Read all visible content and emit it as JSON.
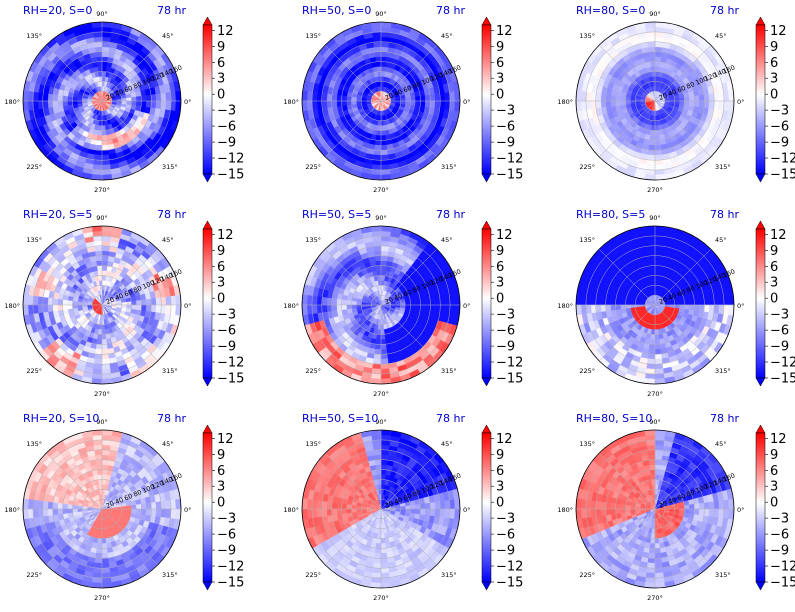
{
  "chart_data": {
    "type": "polar-contour",
    "time_label": "78 hr",
    "angle_labels": [
      "90°",
      "45°",
      "0°",
      "315°",
      "270°",
      "225°",
      "180°",
      "135°"
    ],
    "radial_labels": [
      "20",
      "40",
      "60",
      "80",
      "100",
      "120",
      "140",
      "160"
    ],
    "colorbar_ticks": [
      "12",
      "9",
      "6",
      "3",
      "0",
      "−3",
      "−6",
      "−9",
      "−12",
      "−15"
    ],
    "colormap": [
      "#0000ff",
      "#ffffff",
      "#ff0000"
    ],
    "vlim": [
      -15,
      13
    ],
    "panels": [
      {
        "title": "RH=20, S=0",
        "pattern": "spiral"
      },
      {
        "title": "RH=50, S=0",
        "pattern": "rings"
      },
      {
        "title": "RH=80, S=0",
        "pattern": "core"
      },
      {
        "title": "RH=20, S=5",
        "pattern": "mixed"
      },
      {
        "title": "RH=50, S=5",
        "pattern": "swirl"
      },
      {
        "title": "RH=80, S=5",
        "pattern": "crescent"
      },
      {
        "title": "RH=20, S=10",
        "pattern": "split"
      },
      {
        "title": "RH=50, S=10",
        "pattern": "westred"
      },
      {
        "title": "RH=80, S=10",
        "pattern": "halves"
      }
    ]
  }
}
